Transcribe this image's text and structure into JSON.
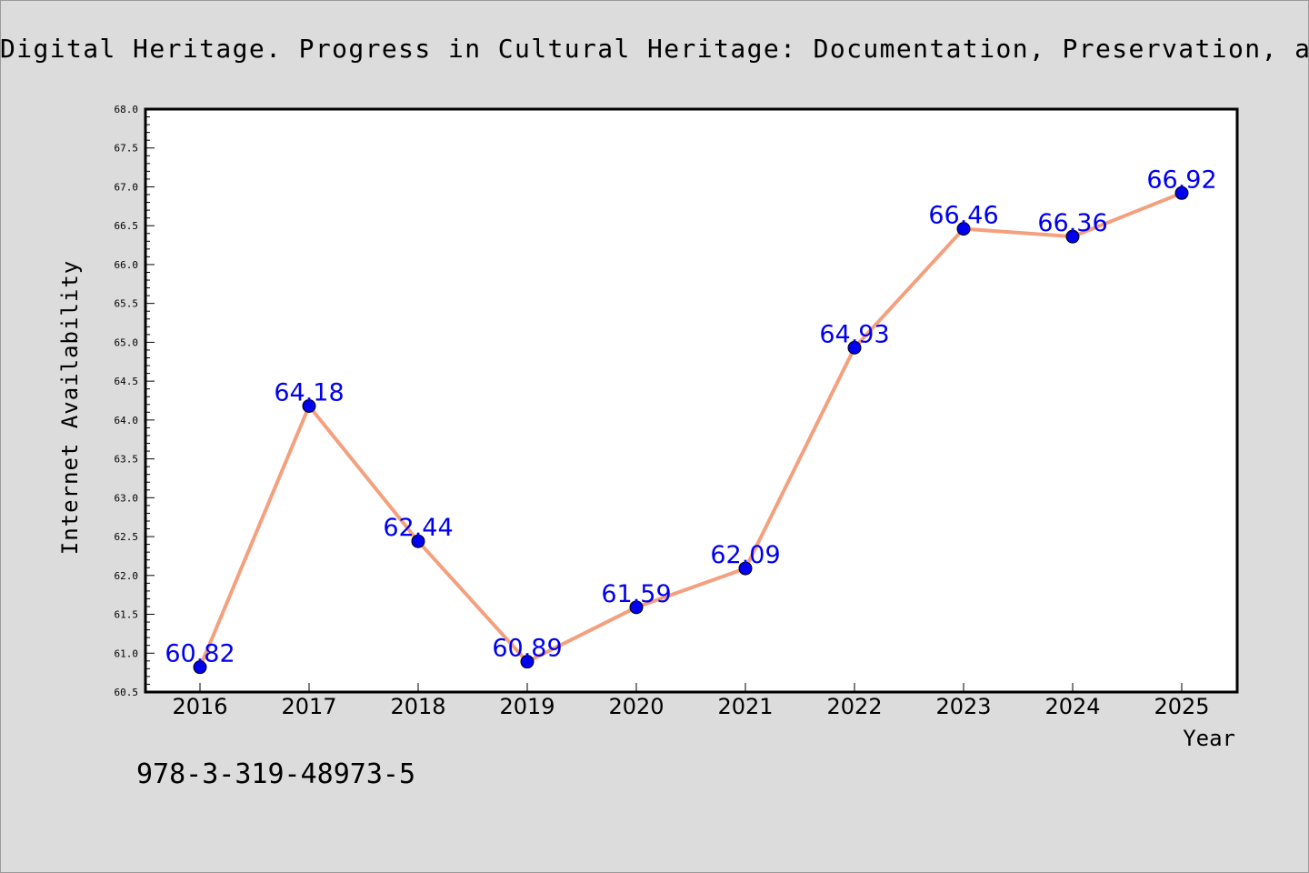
{
  "page": {
    "title": "Digital Heritage. Progress in Cultural Heritage: Documentation, Preservation, an",
    "isbn": "978-3-319-48973-5"
  },
  "chart_data": {
    "type": "line",
    "x": [
      "2016",
      "2017",
      "2018",
      "2019",
      "2020",
      "2021",
      "2022",
      "2023",
      "2024",
      "2025"
    ],
    "series": [
      {
        "values": [
          60.82,
          64.18,
          62.44,
          60.89,
          61.59,
          62.09,
          64.93,
          66.46,
          66.36,
          66.92
        ],
        "labels": [
          "60.82",
          "64.18",
          "62.44",
          "60.89",
          "61.59",
          "62.09",
          "64.93",
          "66.46",
          "66.36",
          "66.92"
        ]
      }
    ],
    "xlabel": "Year",
    "ylabel": "Internet Availability",
    "ylim": [
      60.5,
      68.0
    ],
    "yticks": [
      "60.5",
      "61.0",
      "61.5",
      "62.0",
      "62.5",
      "63.0",
      "63.5",
      "64.0",
      "64.5",
      "65.0",
      "65.5",
      "66.0",
      "66.5",
      "67.0",
      "67.5",
      "68.0"
    ],
    "grid": false,
    "legend": "none",
    "colors": {
      "line": "#f4a07e",
      "marker": "#0000ee",
      "label": "#0000ee",
      "plot_background": "#ffffff",
      "page_background": "#dcdcdc"
    }
  }
}
